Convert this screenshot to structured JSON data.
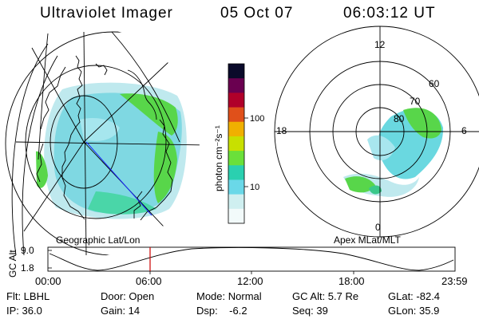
{
  "header": {
    "title": "Ultraviolet Imager",
    "date": "05 Oct 07",
    "time": "06:03:12 UT"
  },
  "colorbar": {
    "label": "photon cm⁻²s⁻¹",
    "ticks": [
      "100",
      "10"
    ],
    "colors": [
      "#0a0a2a",
      "#6a0050",
      "#b0002a",
      "#e0501a",
      "#f0b000",
      "#c8e000",
      "#6ae03a",
      "#2ad0b0",
      "#6ad8e8",
      "#cfeff0",
      "#f2fafa"
    ]
  },
  "left_panel": {
    "label": "Geographic Lat/Lon"
  },
  "right_panel": {
    "label": "Apex MLat/MLT",
    "mlt_labels": [
      "12",
      "18",
      "6",
      "0"
    ],
    "lat_labels": [
      "60",
      "70",
      "80"
    ]
  },
  "altitude_plot": {
    "ylabel": "GC Alt",
    "yticks": [
      "9.0",
      "1.8"
    ],
    "xticks": [
      "00:00",
      "06:00",
      "12:00",
      "18:00",
      "23:59"
    ],
    "current_time_marker_color": "#cc0000"
  },
  "footer": {
    "row1": [
      "Flt: LBHL",
      "Door: Open",
      "Mode: Normal",
      "GC Alt: 5.7 Re",
      "GLat: -82.4"
    ],
    "row2": [
      "IP: 36.0",
      "Gain: 14",
      "Dsp:    -6.2",
      "Seq: 39",
      "GLon: 35.9"
    ]
  }
}
